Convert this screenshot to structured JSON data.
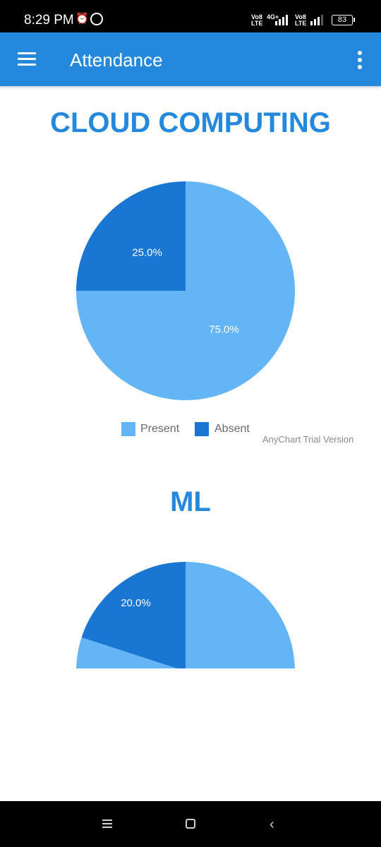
{
  "status_bar": {
    "time": "8:29 PM",
    "alarm_icon": "alarm-clock-icon",
    "whatsapp_icon": "whatsapp-icon",
    "network_1": "Vo8 LTE",
    "network_type": "4G+",
    "network_2": "Vo8 LTE",
    "battery": "83"
  },
  "app_bar": {
    "menu_icon": "hamburger-menu-icon",
    "title": "Attendance",
    "more_icon": "more-vertical-icon"
  },
  "colors": {
    "accent": "#2489dc",
    "present": "#64b5f6",
    "absent": "#1976d2"
  },
  "chart_data": [
    {
      "type": "pie",
      "title": "CLOUD COMPUTING",
      "series": [
        {
          "name": "Present",
          "value": 75.0,
          "label": "75.0%"
        },
        {
          "name": "Absent",
          "value": 25.0,
          "label": "25.0%"
        }
      ],
      "legend": [
        "Present",
        "Absent"
      ],
      "legend_position": "bottom",
      "credits": "AnyChart Trial Version"
    },
    {
      "type": "pie",
      "title": "ML",
      "series": [
        {
          "name": "Present",
          "value": 80.0
        },
        {
          "name": "Absent",
          "value": 20.0,
          "label": "20.0%"
        }
      ]
    }
  ],
  "nav_bar": {
    "recents_icon": "recents-icon",
    "home_icon": "home-icon",
    "back_icon": "back-icon"
  }
}
